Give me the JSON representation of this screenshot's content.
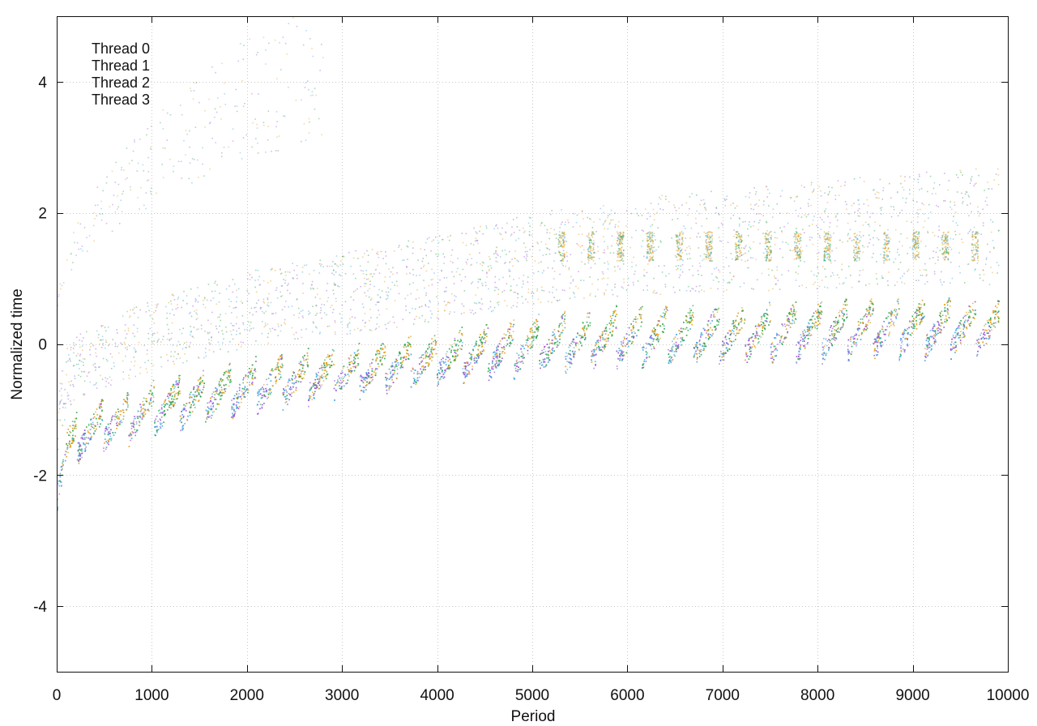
{
  "chart_data": {
    "type": "scatter",
    "title": "",
    "xlabel": "Period",
    "ylabel": "Normalized time",
    "xlim": [
      0,
      10000
    ],
    "ylim": [
      -5,
      5
    ],
    "x_ticks": [
      0,
      1000,
      2000,
      3000,
      4000,
      5000,
      6000,
      7000,
      8000,
      9000,
      10000
    ],
    "x_tick_labels": [
      "0",
      "1000",
      "2000",
      "3000",
      "4000",
      "5000",
      "6000",
      "7000",
      "8000",
      "9000",
      "10000"
    ],
    "y_ticks": [
      -4,
      -2,
      0,
      2,
      4
    ],
    "y_tick_labels": [
      "-4",
      "-2",
      "0",
      "2",
      "4"
    ],
    "grid": true,
    "legend_position": "top-left",
    "series": [
      {
        "name": "Thread 0",
        "color": "#9b59d6"
      },
      {
        "name": "Thread 1",
        "color": "#2aa84a"
      },
      {
        "name": "Thread 2",
        "color": "#46a8e0"
      },
      {
        "name": "Thread 3",
        "color": "#e6a020"
      }
    ],
    "trend": {
      "x": [
        0,
        100,
        300,
        600,
        1000,
        2000,
        3000,
        4000,
        5000,
        6000,
        7000,
        8000,
        9000,
        9900
      ],
      "y_low": [
        -2.5,
        -1.9,
        -1.7,
        -1.55,
        -1.4,
        -1.05,
        -0.8,
        -0.6,
        -0.45,
        -0.35,
        -0.3,
        -0.25,
        -0.2,
        -0.2
      ],
      "y_high": [
        -2.1,
        -1.3,
        -1.1,
        -0.9,
        -0.7,
        -0.35,
        -0.15,
        0.05,
        0.3,
        0.45,
        0.5,
        0.55,
        0.6,
        0.6
      ]
    },
    "cluster_period": 270,
    "upper_band": {
      "x_start": 5300,
      "y": 1.5
    }
  }
}
